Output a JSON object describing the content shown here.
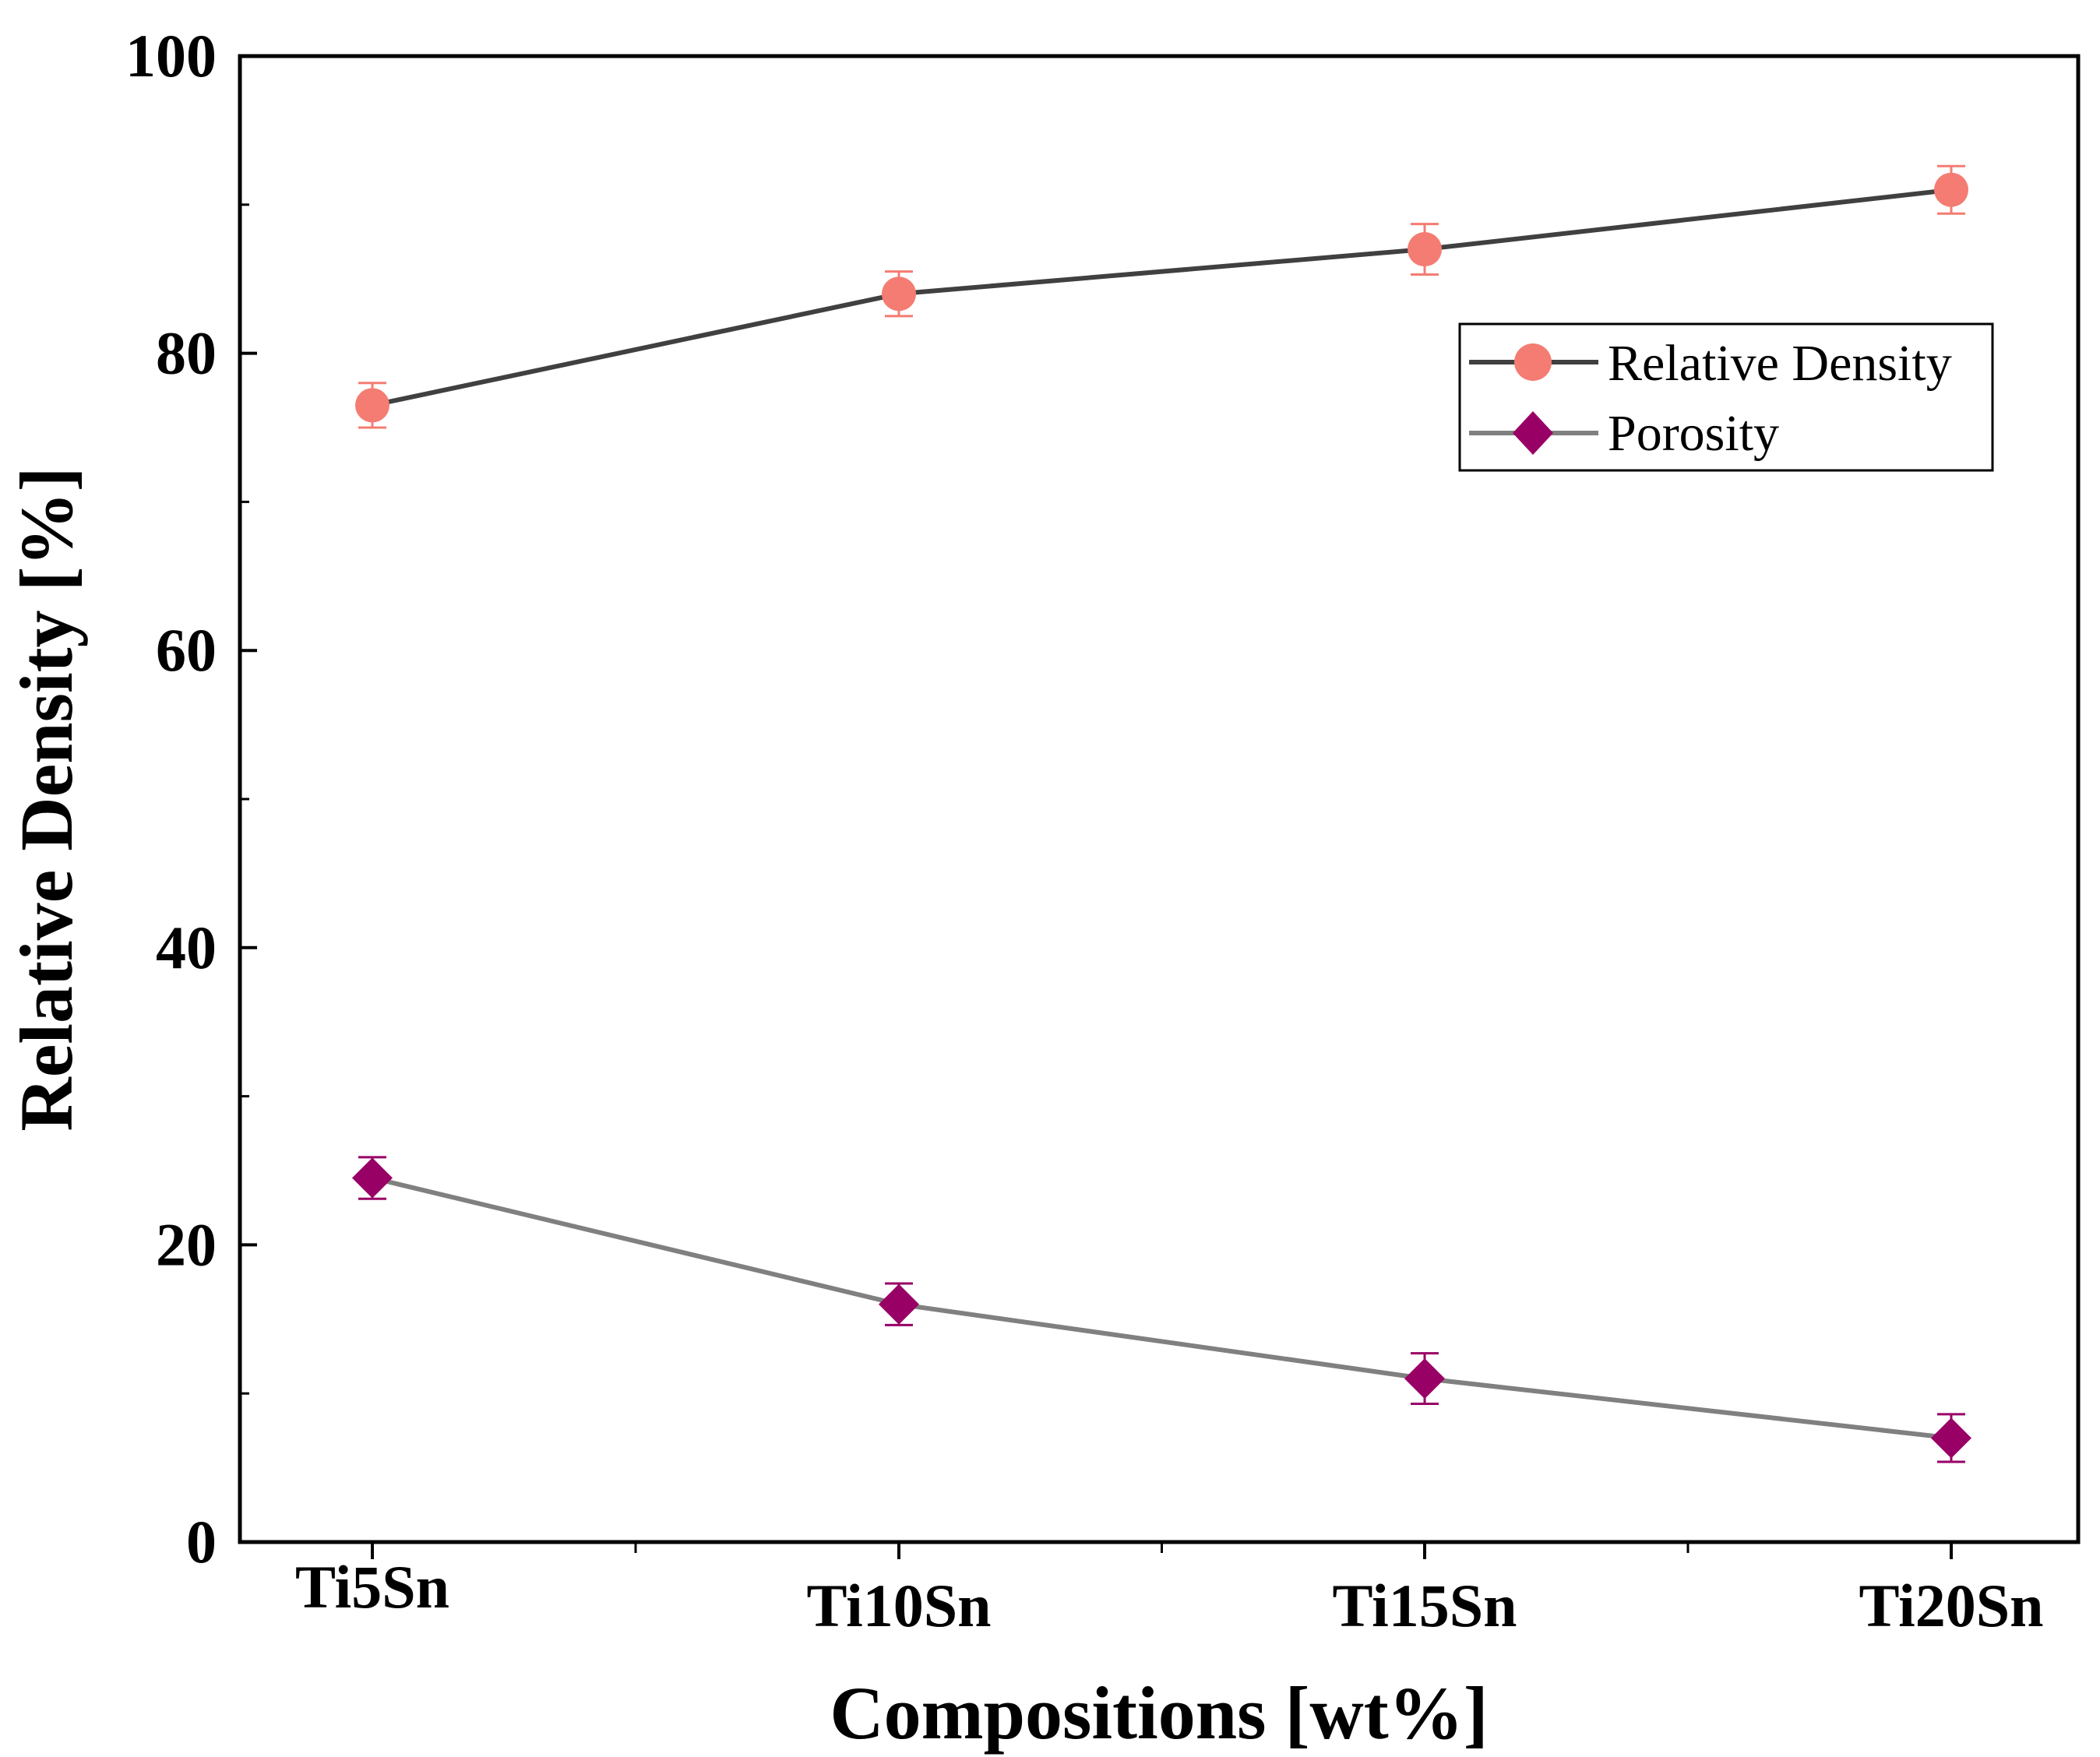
{
  "chart_data": {
    "type": "line",
    "title": "",
    "xlabel": "Compositions [wt%]",
    "ylabel": "Relative Density [%]",
    "categories": [
      "Ti5Sn",
      "Ti10Sn",
      "Ti15Sn",
      "Ti20Sn"
    ],
    "ylim": [
      0,
      100
    ],
    "yticks": [
      "0",
      "20",
      "40",
      "60",
      "80",
      "100"
    ],
    "legend_position": "top-right",
    "series": [
      {
        "name": "Relative Density",
        "values": [
          76.5,
          84,
          87,
          91
        ],
        "errors": [
          1.5,
          1.5,
          1.7,
          1.6
        ],
        "marker": "circle",
        "line_color": "#404040",
        "marker_color": "#f47c72"
      },
      {
        "name": "Porosity",
        "values": [
          24.5,
          16,
          11,
          7
        ],
        "errors": [
          1.4,
          1.4,
          1.7,
          1.6
        ],
        "marker": "diamond",
        "line_color": "#808080",
        "marker_color": "#990066"
      }
    ]
  }
}
